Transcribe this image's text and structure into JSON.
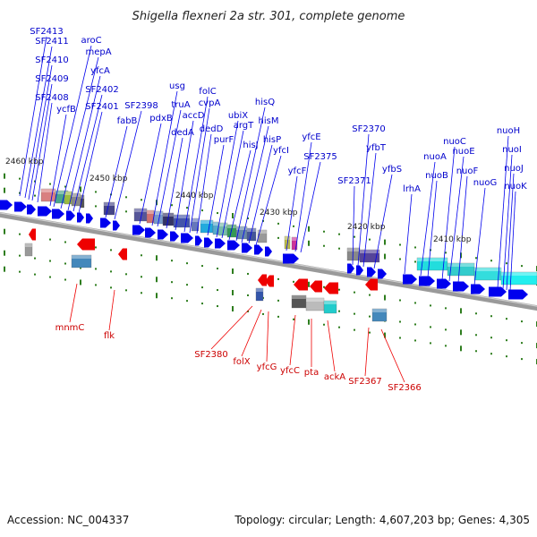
{
  "title": "Shigella flexneri 2a str. 301, complete genome",
  "footer": {
    "accession": "Accession: NC_004337",
    "summary": "Topology: circular; Length: 4,607,203 bp; Genes: 4,305"
  },
  "colors": {
    "forward_gene": "#0000ee",
    "reverse_gene": "#ee0000",
    "forward_label": "#0000cc",
    "reverse_label": "#cc0000",
    "tick": "#2e7d1e",
    "backbone": "#888888"
  },
  "ruler_labels": [
    "2460 kbp",
    "2450 kbp",
    "2440 kbp",
    "2430 kbp",
    "2420 kbp",
    "2410 kbp"
  ],
  "forward_labels": [
    "SF2413",
    "SF2411",
    "SF2410",
    "SF2409",
    "SF2408",
    "ycfB",
    "aroC",
    "mepA",
    "yfcA",
    "SF2402",
    "SF2401",
    "fabB",
    "SF2398",
    "pdxB",
    "usg",
    "truA",
    "dedA",
    "accD",
    "folC",
    "cvpA",
    "dedD",
    "purF",
    "ubiX",
    "argT",
    "hisJ",
    "hisQ",
    "hisM",
    "hisP",
    "yfcI",
    "yfcE",
    "yfcF",
    "SF2375",
    "SF2371",
    "SF2370",
    "yfbT",
    "yfbS",
    "lrhA",
    "nuoA",
    "nuoB",
    "nuoC",
    "nuoE",
    "nuoF",
    "nuoG",
    "nuoH",
    "nuoI",
    "nuoJ",
    "nuoK"
  ],
  "reverse_labels": [
    "mnmC",
    "flk",
    "SF2380",
    "folX",
    "yfcG",
    "yfcC",
    "pta",
    "ackA",
    "SF2367",
    "SF2366"
  ]
}
